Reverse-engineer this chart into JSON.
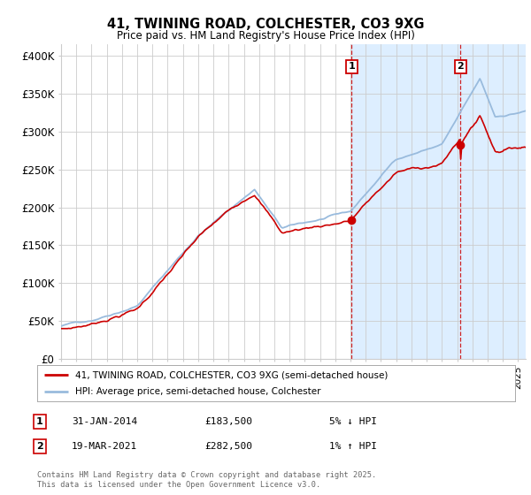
{
  "title": "41, TWINING ROAD, COLCHESTER, CO3 9XG",
  "subtitle": "Price paid vs. HM Land Registry's House Price Index (HPI)",
  "ylabel_ticks": [
    "£0",
    "£50K",
    "£100K",
    "£150K",
    "£200K",
    "£250K",
    "£300K",
    "£350K",
    "£400K"
  ],
  "ytick_values": [
    0,
    50000,
    100000,
    150000,
    200000,
    250000,
    300000,
    350000,
    400000
  ],
  "ylim": [
    0,
    415000
  ],
  "xlim_start": 1995.0,
  "xlim_end": 2025.5,
  "vline1_x": 2014.08,
  "vline2_x": 2021.21,
  "point1_x": 2014.08,
  "point1_y": 183500,
  "point2_x": 2021.21,
  "point2_y": 282500,
  "legend_line1": "41, TWINING ROAD, COLCHESTER, CO3 9XG (semi-detached house)",
  "legend_line2": "HPI: Average price, semi-detached house, Colchester",
  "ann1_label": "1",
  "ann1_date": "31-JAN-2014",
  "ann1_price": "£183,500",
  "ann1_pct": "5% ↓ HPI",
  "ann2_label": "2",
  "ann2_date": "19-MAR-2021",
  "ann2_price": "£282,500",
  "ann2_pct": "1% ↑ HPI",
  "footer": "Contains HM Land Registry data © Crown copyright and database right 2025.\nThis data is licensed under the Open Government Licence v3.0.",
  "line_red_color": "#cc0000",
  "line_blue_color": "#99bbdd",
  "vline_color": "#cc0000",
  "span_color": "#ddeeff",
  "background_color": "#ffffff",
  "grid_color": "#cccccc"
}
